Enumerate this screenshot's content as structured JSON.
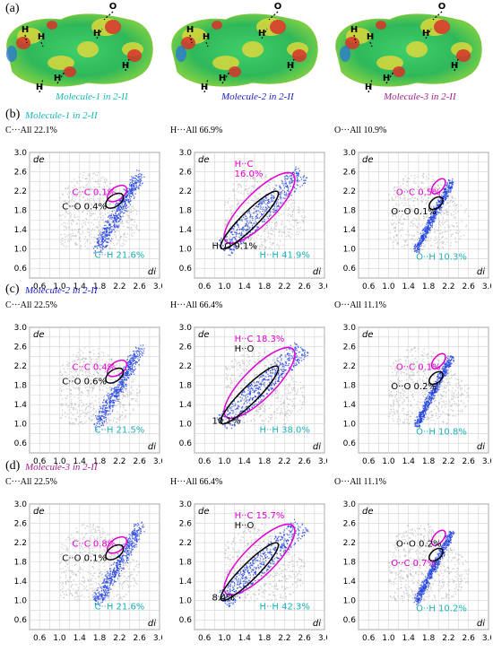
{
  "panel_a": {
    "label": "(a)",
    "molecules": [
      {
        "caption": "Molecule-1 in 2-II",
        "caption_color": "#19b5b5",
        "atoms": [
          "O",
          "H",
          "H",
          "H",
          "H",
          "H",
          "H"
        ]
      },
      {
        "caption": "Molecule-2 in 2-II",
        "caption_color": "#1a1acc",
        "atoms": [
          "O",
          "H",
          "H",
          "H",
          "H",
          "H",
          "H"
        ]
      },
      {
        "caption": "Molecule-3 in 2-II",
        "caption_color": "#a0208e",
        "atoms": [
          "O",
          "H",
          "H",
          "H",
          "H",
          "H",
          "H"
        ]
      }
    ]
  },
  "rows": [
    {
      "label": "(b)",
      "molecule": "Molecule-1 in 2-II",
      "molecule_color": "#19b5b5",
      "plots": [
        {
          "title": "C···All 22.1%",
          "annotations": [
            {
              "text": "C··C 0.1%",
              "color": "#e000d0"
            },
            {
              "text": "C··O 0.4%",
              "color": "#000000"
            },
            {
              "text": "C··H 21.6%",
              "color": "#1ab0b8"
            }
          ]
        },
        {
          "title": "H···All 66.9%",
          "annotations": [
            {
              "text": "H··C",
              "color": "#e000d0"
            },
            {
              "text": "16.0%",
              "color": "#e000d0"
            },
            {
              "text": "H··O 9.1%",
              "color": "#000000"
            },
            {
              "text": "H··H 41.9%",
              "color": "#1ab0b8"
            }
          ]
        },
        {
          "title": "O···All 10.9%",
          "annotations": [
            {
              "text": "O··C 0.5%",
              "color": "#e000d0"
            },
            {
              "text": "O··O 0.1%",
              "color": "#000000"
            },
            {
              "text": "O··H 10.3%",
              "color": "#1ab0b8"
            }
          ]
        }
      ]
    },
    {
      "label": "(c)",
      "molecule": "Molecule-2 in 2-II",
      "molecule_color": "#1a1acc",
      "plots": [
        {
          "title": "C···All 22.5%",
          "annotations": [
            {
              "text": "C··C 0.4%",
              "color": "#e000d0"
            },
            {
              "text": "C··O 0.6%",
              "color": "#000000"
            },
            {
              "text": "C··H 21.5%",
              "color": "#1ab0b8"
            }
          ]
        },
        {
          "title": "H···All 66.4%",
          "annotations": [
            {
              "text": "H··C 18.3%",
              "color": "#e000d0"
            },
            {
              "text": "H··O",
              "color": "#000000"
            },
            {
              "text": "10.1%",
              "color": "#000000"
            },
            {
              "text": "H··H 38.0%",
              "color": "#1ab0b8"
            }
          ]
        },
        {
          "title": "O···All 11.1%",
          "annotations": [
            {
              "text": "O··C 0.1%",
              "color": "#e000d0"
            },
            {
              "text": "O··O 0.2%",
              "color": "#000000"
            },
            {
              "text": "O··H 10.8%",
              "color": "#1ab0b8"
            }
          ]
        }
      ]
    },
    {
      "label": "(d)",
      "molecule": "Molecule-3 in 2-II",
      "molecule_color": "#a0208e",
      "plots": [
        {
          "title": "C···All 22.5%",
          "annotations": [
            {
              "text": "C··C 0.8%",
              "color": "#e000d0"
            },
            {
              "text": "C··O 0.1%",
              "color": "#000000"
            },
            {
              "text": "C··H 21.6%",
              "color": "#1ab0b8"
            }
          ]
        },
        {
          "title": "H···All 66.4%",
          "annotations": [
            {
              "text": "H··C 15.7%",
              "color": "#e000d0"
            },
            {
              "text": "H··O",
              "color": "#000000"
            },
            {
              "text": "8.4%",
              "color": "#000000"
            },
            {
              "text": "H··H 42.3%",
              "color": "#1ab0b8"
            }
          ]
        },
        {
          "title": "O···All 11.1%",
          "annotations": [
            {
              "text": "O··O 0.2%",
              "color": "#000000"
            },
            {
              "text": "O··C 0.7%",
              "color": "#e000d0"
            },
            {
              "text": "O··H 10.2%",
              "color": "#1ab0b8"
            }
          ]
        }
      ]
    }
  ],
  "axes": {
    "x_label": "di",
    "y_label": "de",
    "x_ticks": [
      "0.6",
      "1.0",
      "1.4",
      "1.8",
      "2.2",
      "2.6",
      "3.0"
    ],
    "y_ticks": [
      "3.0",
      "2.6",
      "2.2",
      "1.8",
      "1.4",
      "1.0",
      "0.6"
    ],
    "range": [
      0.4,
      3.0
    ]
  },
  "colors": {
    "magenta": "#e000d0",
    "black": "#000000",
    "teal": "#1ab0b8",
    "scatter_blue": "#1f3fe0",
    "scatter_gray": "#a8a8a8"
  }
}
